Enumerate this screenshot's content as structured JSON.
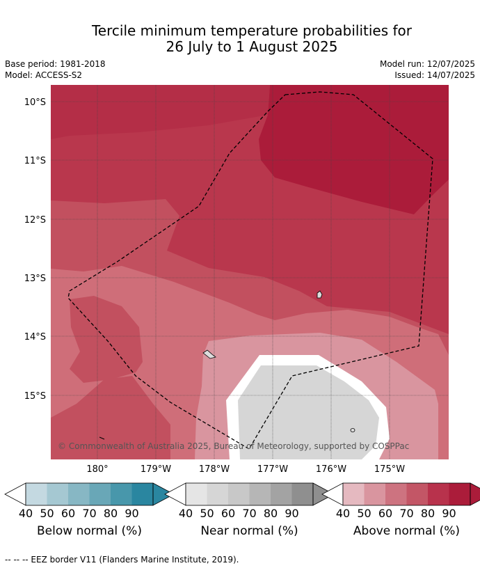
{
  "title_line1": "Tercile minimum temperature probabilities for",
  "title_line2": "26 July to 1 August 2025",
  "base_period": "Base period: 1981-2018",
  "model": "Model: ACCESS-S2",
  "model_run": "Model run: 12/07/2025",
  "issued": "Issued: 14/07/2025",
  "lat_labels": [
    "10°S",
    "11°S",
    "12°S",
    "13°S",
    "14°S",
    "15°S"
  ],
  "lon_labels": [
    "180°",
    "179°W",
    "178°W",
    "177°W",
    "176°W",
    "175°W"
  ],
  "attribution": "© Commonwealth of Australia 2025, Bureau of Meteorology, supported by COSPPac",
  "colorbars": [
    {
      "label": "Below normal (%)",
      "ticks": [
        "40",
        "50",
        "60",
        "70",
        "80",
        "90"
      ],
      "colors": [
        "#c4d9e1",
        "#a5c8d2",
        "#87b7c4",
        "#69a7b7",
        "#4897ab",
        "#2a86a0"
      ],
      "under": "#ffffff",
      "over": "#2a86a0"
    },
    {
      "label": "Near normal (%)",
      "ticks": [
        "40",
        "50",
        "60",
        "70",
        "80",
        "90"
      ],
      "colors": [
        "#e5e5e5",
        "#d6d6d6",
        "#c8c8c8",
        "#b6b6b6",
        "#a3a3a3",
        "#8f8f8f"
      ],
      "under": "#ffffff",
      "over": "#8f8f8f"
    },
    {
      "label": "Above normal (%)",
      "ticks": [
        "40",
        "50",
        "60",
        "70",
        "80",
        "90"
      ],
      "colors": [
        "#e5b9c0",
        "#d9959f",
        "#cd7380",
        "#c35666",
        "#b8324c",
        "#ab1c3a"
      ],
      "under": "#ffffff",
      "over": "#ab1c3a"
    }
  ],
  "footer": "--  --  -- EEZ border V11 (Flanders Marine Institute, 2019)."
}
